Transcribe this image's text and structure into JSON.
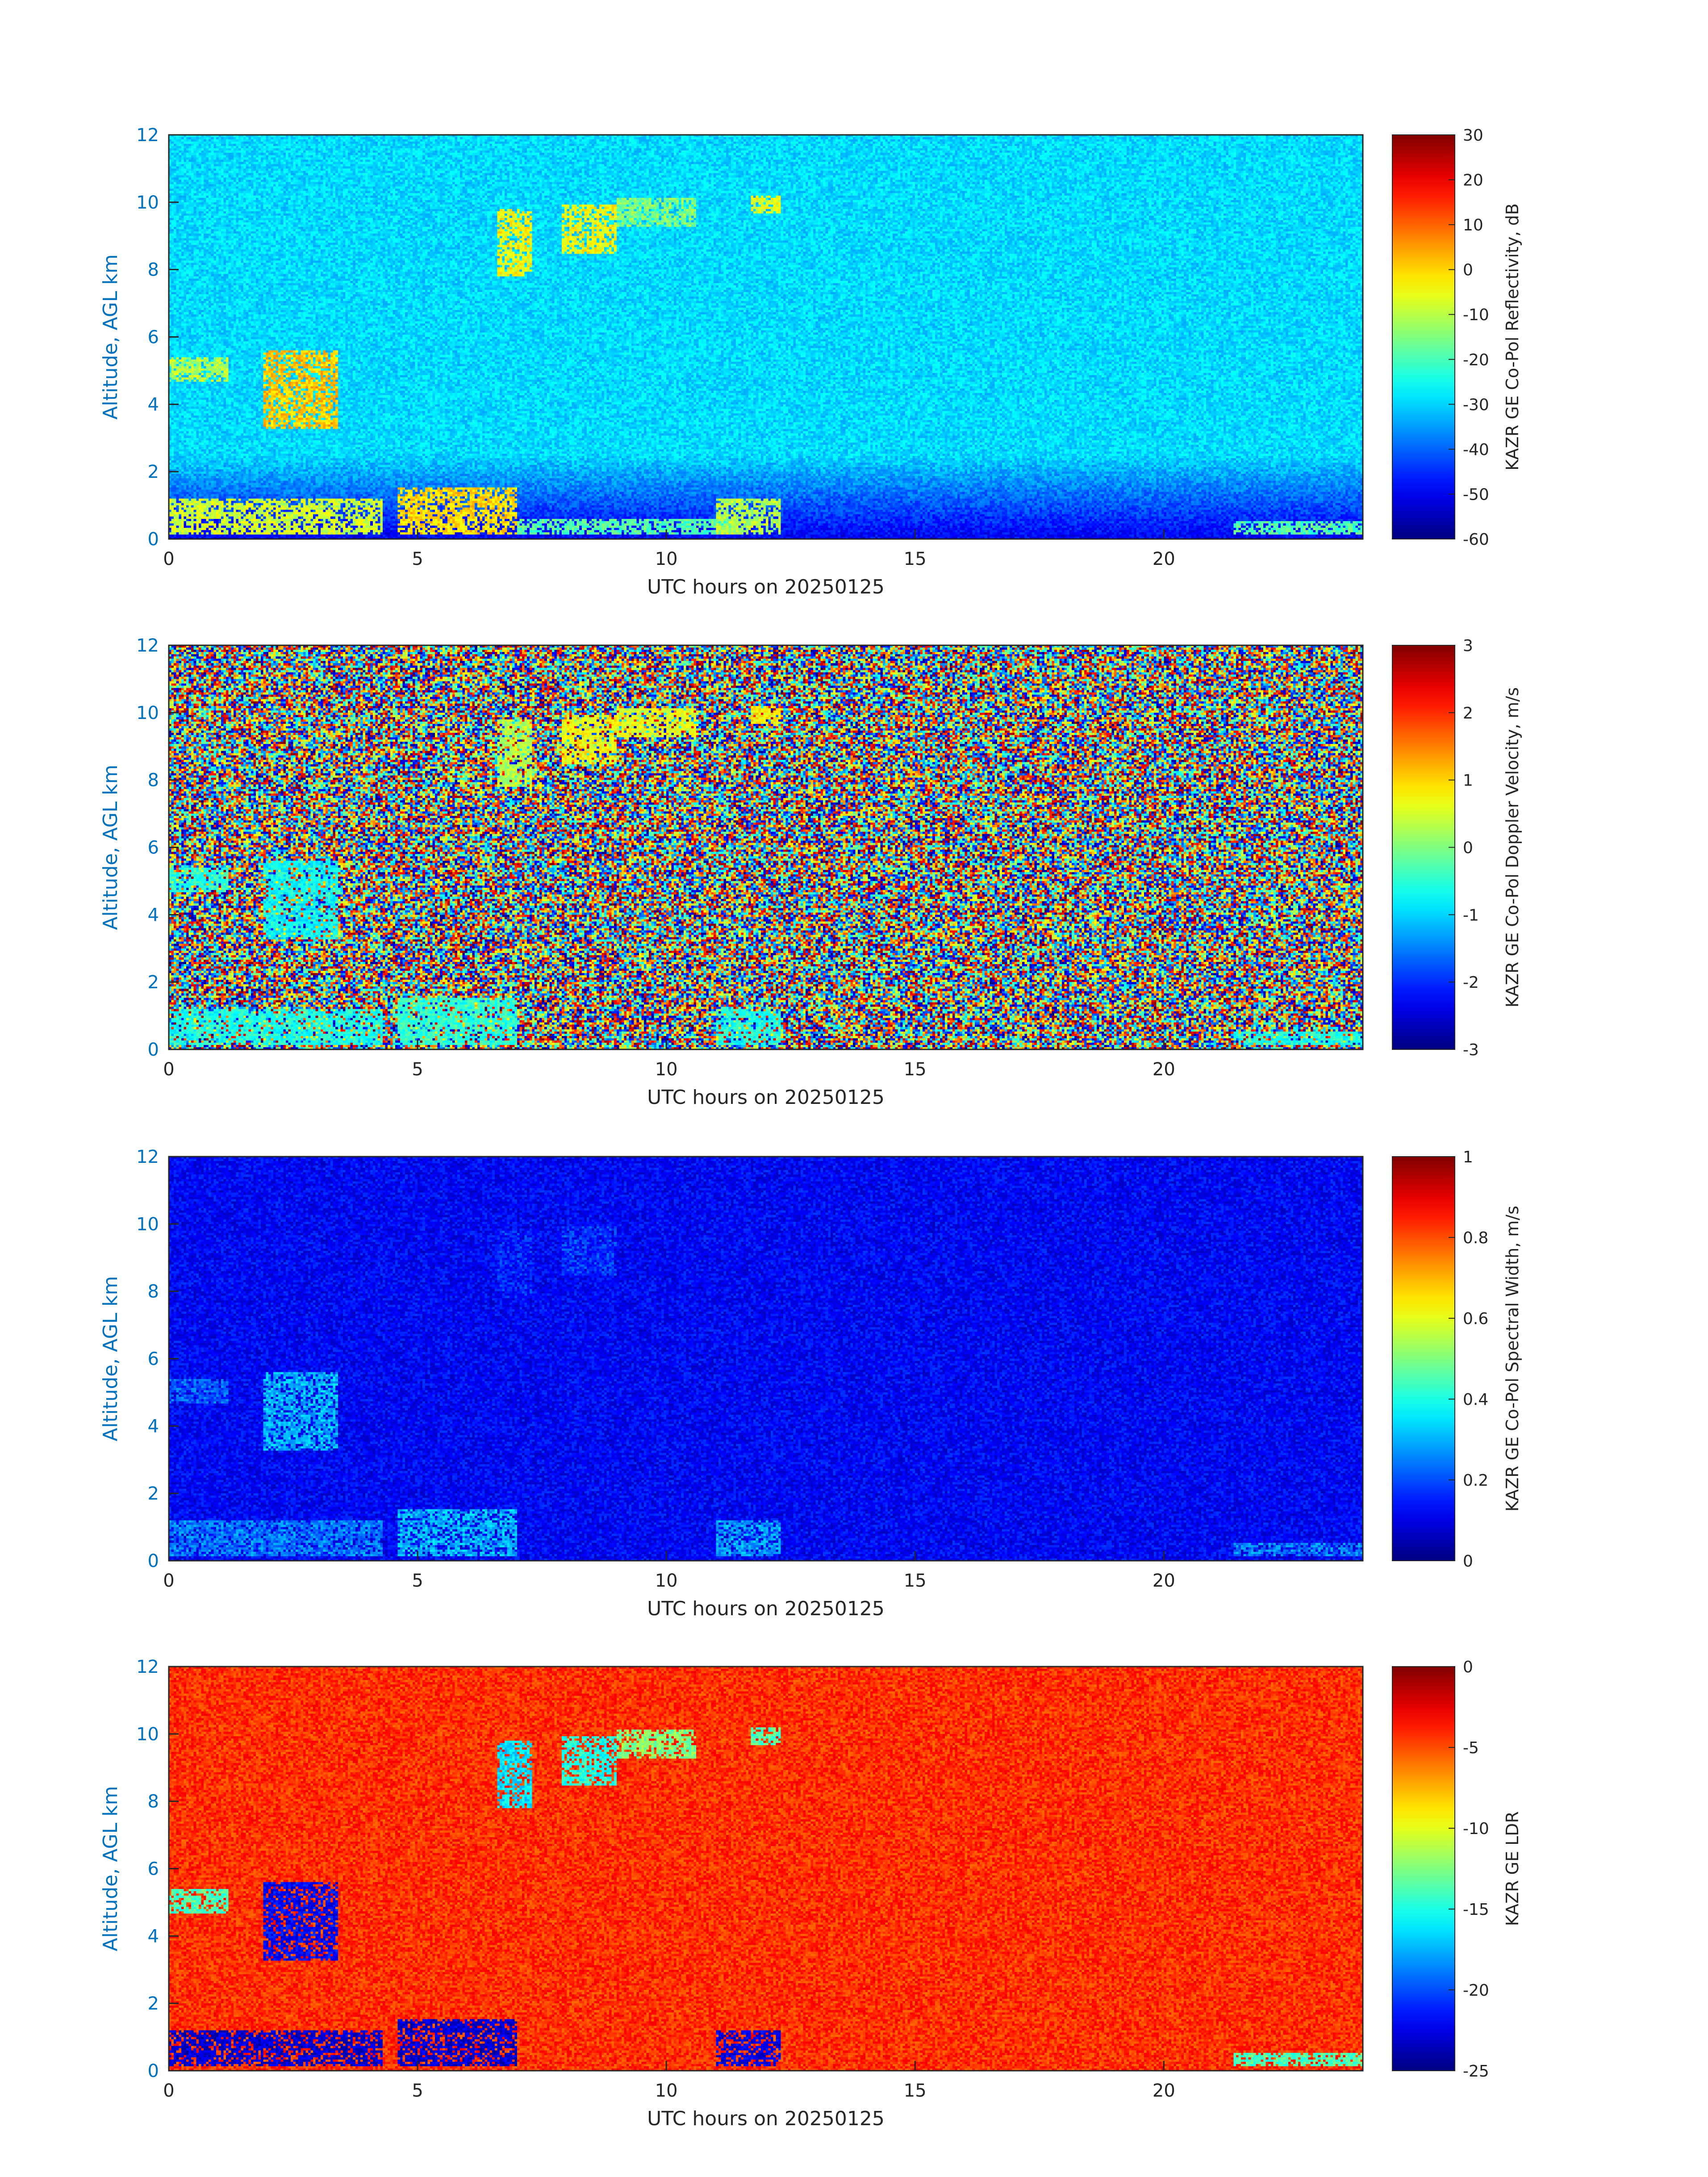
{
  "chart_data": [
    {
      "type": "heatmap",
      "title": "",
      "xlabel": "UTC hours on 20250125",
      "ylabel": "Altitude, AGL km",
      "xlim": [
        0,
        24
      ],
      "ylim": [
        0,
        12
      ],
      "x_ticks": [
        "0",
        "5",
        "10",
        "15",
        "20"
      ],
      "y_ticks": [
        "0",
        "2",
        "4",
        "6",
        "8",
        "10",
        "12"
      ],
      "colorbar": {
        "label": "KAZR GE Co-Pol Reflectivity, dB",
        "range": [
          -60,
          30
        ],
        "ticks": [
          "30",
          "20",
          "10",
          "0",
          "-10",
          "-20",
          "-30",
          "-40",
          "-50",
          "-60"
        ],
        "colormap": "jet"
      },
      "background_level": 0.34,
      "noise": 0.05,
      "ground_gradient": true,
      "features": [
        {
          "x": [
            0.0,
            4.3
          ],
          "y": [
            0.1,
            1.2
          ],
          "level": 0.58
        },
        {
          "x": [
            4.6,
            7.0
          ],
          "y": [
            0.1,
            1.5
          ],
          "level": 0.66
        },
        {
          "x": [
            7.0,
            11.5
          ],
          "y": [
            0.1,
            0.6
          ],
          "level": 0.46
        },
        {
          "x": [
            11.0,
            12.3
          ],
          "y": [
            0.1,
            1.2
          ],
          "level": 0.55
        },
        {
          "x": [
            0.0,
            1.2
          ],
          "y": [
            4.7,
            5.4
          ],
          "level": 0.55
        },
        {
          "x": [
            1.9,
            3.4
          ],
          "y": [
            3.3,
            5.6
          ],
          "level": 0.68
        },
        {
          "x": [
            6.6,
            7.3
          ],
          "y": [
            7.8,
            9.8
          ],
          "level": 0.62
        },
        {
          "x": [
            7.9,
            9.0
          ],
          "y": [
            8.5,
            9.9
          ],
          "level": 0.62
        },
        {
          "x": [
            9.0,
            10.6
          ],
          "y": [
            9.3,
            10.1
          ],
          "level": 0.5
        },
        {
          "x": [
            11.7,
            12.3
          ],
          "y": [
            9.7,
            10.2
          ],
          "level": 0.6
        },
        {
          "x": [
            21.4,
            24.0
          ],
          "y": [
            0.1,
            0.5
          ],
          "level": 0.45
        }
      ]
    },
    {
      "type": "heatmap",
      "title": "",
      "xlabel": "UTC hours on 20250125",
      "ylabel": "Altitude, AGL km",
      "xlim": [
        0,
        24
      ],
      "ylim": [
        0,
        12
      ],
      "x_ticks": [
        "0",
        "5",
        "10",
        "15",
        "20"
      ],
      "y_ticks": [
        "0",
        "2",
        "4",
        "6",
        "8",
        "10",
        "12"
      ],
      "colorbar": {
        "label": "KAZR GE Co-Pol Doppler Velocity, m/s",
        "range": [
          -3,
          3
        ],
        "ticks": [
          "3",
          "2",
          "1",
          "0",
          "-1",
          "-2",
          "-3"
        ],
        "colormap": "jet"
      },
      "background_level": "random",
      "noise": 1,
      "ground_gradient": false,
      "features": [
        {
          "x": [
            0.0,
            4.3
          ],
          "y": [
            0.1,
            1.2
          ],
          "level": 0.4
        },
        {
          "x": [
            4.6,
            7.0
          ],
          "y": [
            0.1,
            1.5
          ],
          "level": 0.42
        },
        {
          "x": [
            11.0,
            12.3
          ],
          "y": [
            0.1,
            1.2
          ],
          "level": 0.4
        },
        {
          "x": [
            0.0,
            1.2
          ],
          "y": [
            4.7,
            5.4
          ],
          "level": 0.42
        },
        {
          "x": [
            1.9,
            3.4
          ],
          "y": [
            3.3,
            5.6
          ],
          "level": 0.38
        },
        {
          "x": [
            6.6,
            7.3
          ],
          "y": [
            7.8,
            9.8
          ],
          "level": 0.55
        },
        {
          "x": [
            7.9,
            9.0
          ],
          "y": [
            8.5,
            9.9
          ],
          "level": 0.62
        },
        {
          "x": [
            9.0,
            10.6
          ],
          "y": [
            9.3,
            10.1
          ],
          "level": 0.6
        },
        {
          "x": [
            11.7,
            12.3
          ],
          "y": [
            9.7,
            10.2
          ],
          "level": 0.63
        },
        {
          "x": [
            21.4,
            24.0
          ],
          "y": [
            0.1,
            0.5
          ],
          "level": 0.4
        }
      ]
    },
    {
      "type": "heatmap",
      "title": "",
      "xlabel": "UTC hours on 20250125",
      "ylabel": "Altitude, AGL km",
      "xlim": [
        0,
        24
      ],
      "ylim": [
        0,
        12
      ],
      "x_ticks": [
        "0",
        "5",
        "10",
        "15",
        "20"
      ],
      "y_ticks": [
        "0",
        "2",
        "4",
        "6",
        "8",
        "10",
        "12"
      ],
      "colorbar": {
        "label": "KAZR GE Co-Pol Spectral Width, m/s",
        "range": [
          0,
          1
        ],
        "ticks": [
          "1",
          "0.8",
          "0.6",
          "0.4",
          "0.2",
          "0"
        ],
        "colormap": "jet"
      },
      "background_level": 0.12,
      "noise": 0.06,
      "ground_gradient": false,
      "features": [
        {
          "x": [
            0.0,
            4.3
          ],
          "y": [
            0.1,
            1.2
          ],
          "level": 0.25
        },
        {
          "x": [
            4.6,
            7.0
          ],
          "y": [
            0.1,
            1.5
          ],
          "level": 0.3
        },
        {
          "x": [
            11.0,
            12.3
          ],
          "y": [
            0.1,
            1.2
          ],
          "level": 0.28
        },
        {
          "x": [
            0.0,
            1.2
          ],
          "y": [
            4.7,
            5.4
          ],
          "level": 0.22
        },
        {
          "x": [
            1.9,
            3.4
          ],
          "y": [
            3.3,
            5.6
          ],
          "level": 0.3
        },
        {
          "x": [
            6.6,
            7.3
          ],
          "y": [
            7.8,
            9.8
          ],
          "level": 0.16
        },
        {
          "x": [
            7.9,
            9.0
          ],
          "y": [
            8.5,
            9.9
          ],
          "level": 0.18
        },
        {
          "x": [
            21.4,
            24.0
          ],
          "y": [
            0.1,
            0.5
          ],
          "level": 0.25
        }
      ]
    },
    {
      "type": "heatmap",
      "title": "",
      "xlabel": "UTC hours on 20250125",
      "ylabel": "Altitude, AGL km",
      "xlim": [
        0,
        24
      ],
      "ylim": [
        0,
        12
      ],
      "x_ticks": [
        "0",
        "5",
        "10",
        "15",
        "20"
      ],
      "y_ticks": [
        "0",
        "2",
        "4",
        "6",
        "8",
        "10",
        "12"
      ],
      "colorbar": {
        "label": "KAZR GE LDR",
        "range": [
          -25,
          0
        ],
        "ticks": [
          "0",
          "-5",
          "-10",
          "-15",
          "-20",
          "-25"
        ],
        "colormap": "jet"
      },
      "background_level": 0.83,
      "noise": 0.06,
      "ground_gradient": false,
      "features": [
        {
          "x": [
            0.0,
            4.3
          ],
          "y": [
            0.1,
            1.2
          ],
          "level": 0.08
        },
        {
          "x": [
            4.6,
            7.0
          ],
          "y": [
            0.1,
            1.5
          ],
          "level": 0.08
        },
        {
          "x": [
            11.0,
            12.3
          ],
          "y": [
            0.1,
            1.2
          ],
          "level": 0.1
        },
        {
          "x": [
            0.0,
            1.2
          ],
          "y": [
            4.7,
            5.4
          ],
          "level": 0.45
        },
        {
          "x": [
            1.9,
            3.4
          ],
          "y": [
            3.3,
            5.6
          ],
          "level": 0.12
        },
        {
          "x": [
            6.6,
            7.3
          ],
          "y": [
            7.8,
            9.8
          ],
          "level": 0.35
        },
        {
          "x": [
            7.9,
            9.0
          ],
          "y": [
            8.5,
            9.9
          ],
          "level": 0.4
        },
        {
          "x": [
            9.0,
            10.6
          ],
          "y": [
            9.3,
            10.1
          ],
          "level": 0.5
        },
        {
          "x": [
            11.7,
            12.3
          ],
          "y": [
            9.7,
            10.2
          ],
          "level": 0.45
        },
        {
          "x": [
            21.4,
            24.0
          ],
          "y": [
            0.1,
            0.5
          ],
          "level": 0.45
        }
      ]
    }
  ],
  "colors": {
    "axis_label": "#0072bd",
    "text": "#262626",
    "axis_line": "#262626"
  }
}
